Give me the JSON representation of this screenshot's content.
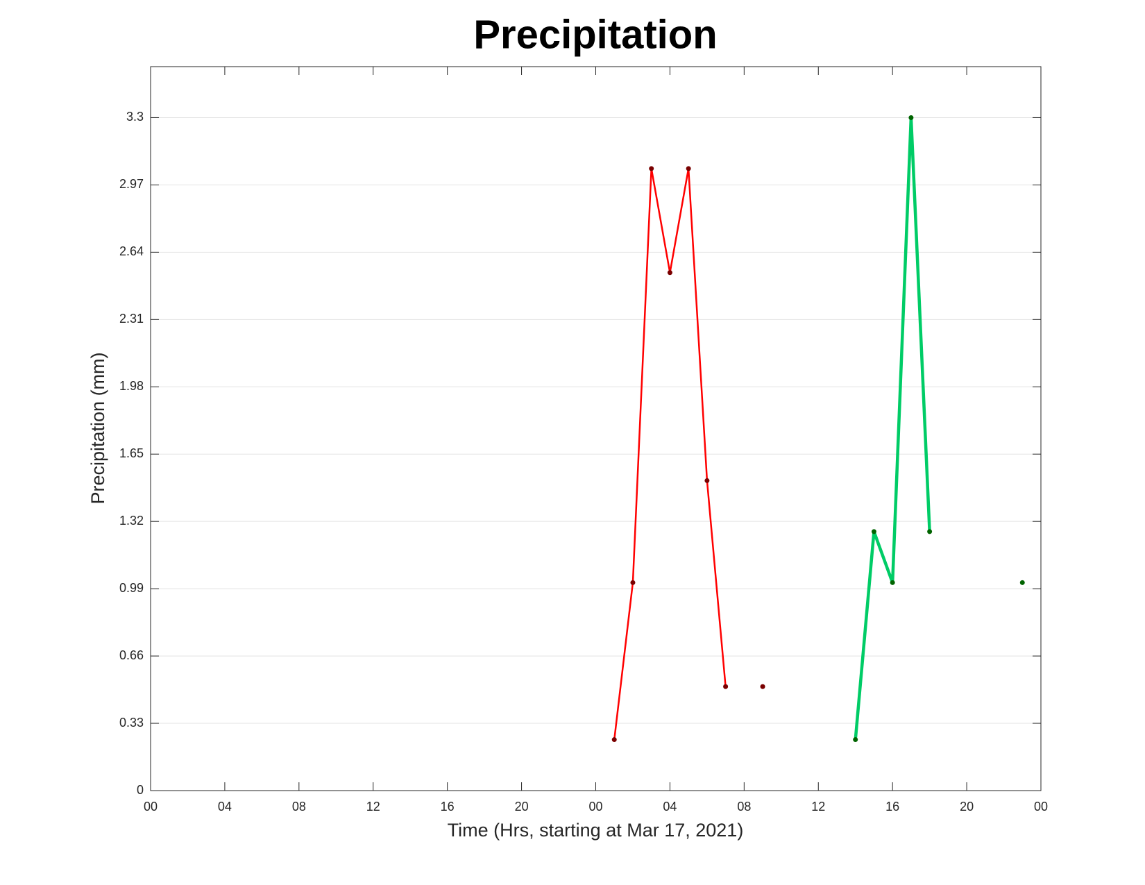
{
  "chart_data": {
    "type": "line",
    "title": "Precipitation",
    "xlabel": "Time (Hrs, starting at Mar 17, 2021)",
    "ylabel": "Precipitation (mm)",
    "xlim": [
      0,
      48
    ],
    "xticks": [
      {
        "value": 0,
        "label": "00"
      },
      {
        "value": 4,
        "label": "04"
      },
      {
        "value": 8,
        "label": "08"
      },
      {
        "value": 12,
        "label": "12"
      },
      {
        "value": 16,
        "label": "16"
      },
      {
        "value": 20,
        "label": "20"
      },
      {
        "value": 24,
        "label": "00"
      },
      {
        "value": 28,
        "label": "04"
      },
      {
        "value": 32,
        "label": "08"
      },
      {
        "value": 36,
        "label": "12"
      },
      {
        "value": 40,
        "label": "16"
      },
      {
        "value": 44,
        "label": "20"
      },
      {
        "value": 48,
        "label": "00"
      }
    ],
    "ylim": [
      0,
      3.55
    ],
    "yticks": [
      0,
      0.33,
      0.66,
      0.99,
      1.32,
      1.65,
      1.98,
      2.31,
      2.64,
      2.97,
      3.3
    ],
    "grid": true,
    "series": [
      {
        "color": "#ff0000",
        "marker_color": "#7a0000",
        "line_width": 2.5,
        "x": [
          25,
          26,
          27,
          28,
          29,
          30,
          31,
          32,
          33
        ],
        "values": [
          0.25,
          1.02,
          3.05,
          2.54,
          3.05,
          1.52,
          0.51,
          null,
          0.51
        ]
      },
      {
        "color": "#00cc66",
        "marker_color": "#006400",
        "line_width": 4.5,
        "x": [
          38,
          39,
          40,
          41,
          42,
          43,
          47
        ],
        "values": [
          0.25,
          1.27,
          1.02,
          3.3,
          1.27,
          null,
          1.02
        ]
      }
    ]
  }
}
